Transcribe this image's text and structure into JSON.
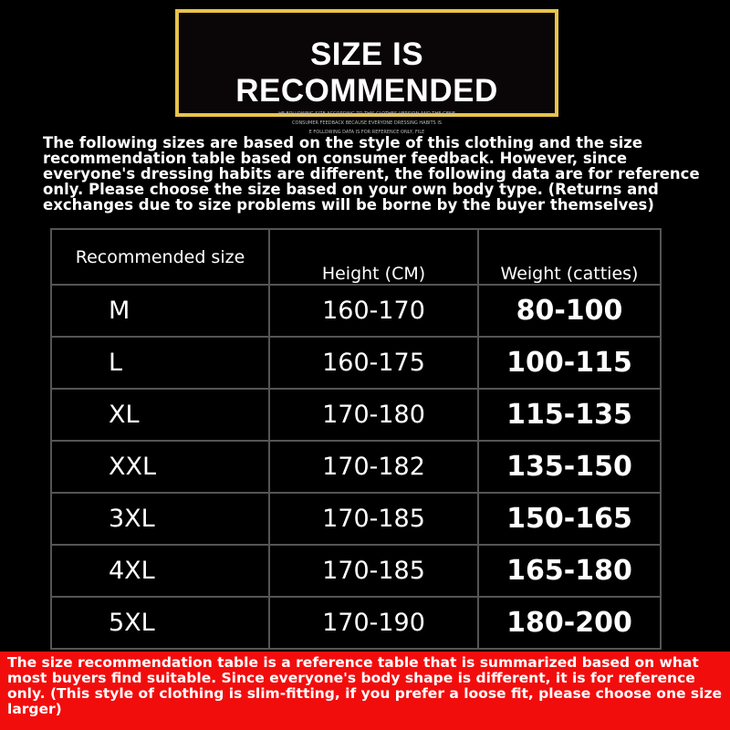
{
  "banner": {
    "title": "SIZE IS RECOMMENDED",
    "subtitle_lines": [
      "HE FOLLOWING SIZE ACCORDING TO THIS CLOTHES VERSION AND THE GENE",
      "CONSUMER FEEDBACK BECAUSE EVERYONE DRESSING HABITS IS",
      "E FOLLOWING DATA IS FOR REFERENCE ONLY, FILE"
    ]
  },
  "intro": "The following sizes are based on the style of this clothing and the size recommendation table based on consumer feedback. However, since everyone's dressing habits are different, the following data are for reference only. Please choose the size based on your own body type. (Returns and exchanges due to size problems will be borne by the buyer themselves)",
  "table": {
    "headers": [
      "Recommended size",
      "Height (CM)",
      "Weight (catties)"
    ],
    "rows": [
      [
        "M",
        "160-170",
        "80-100"
      ],
      [
        "L",
        "160-175",
        "100-115"
      ],
      [
        "XL",
        "170-180",
        "115-135"
      ],
      [
        "XXL",
        "170-182",
        "135-150"
      ],
      [
        "3XL",
        "170-185",
        "150-165"
      ],
      [
        "4XL",
        "170-185",
        "165-180"
      ],
      [
        "5XL",
        "170-190",
        "180-200"
      ]
    ]
  },
  "footer": "The size recommendation table is a reference table that is summarized based on what most buyers find suitable. Since everyone's body shape is different, it is for reference only. (This style of clothing is slim-fitting, if you prefer a loose fit, please choose one size larger)",
  "colors": {
    "banner_border": "#e8c34a",
    "footer_bg": "#f20d0d"
  }
}
